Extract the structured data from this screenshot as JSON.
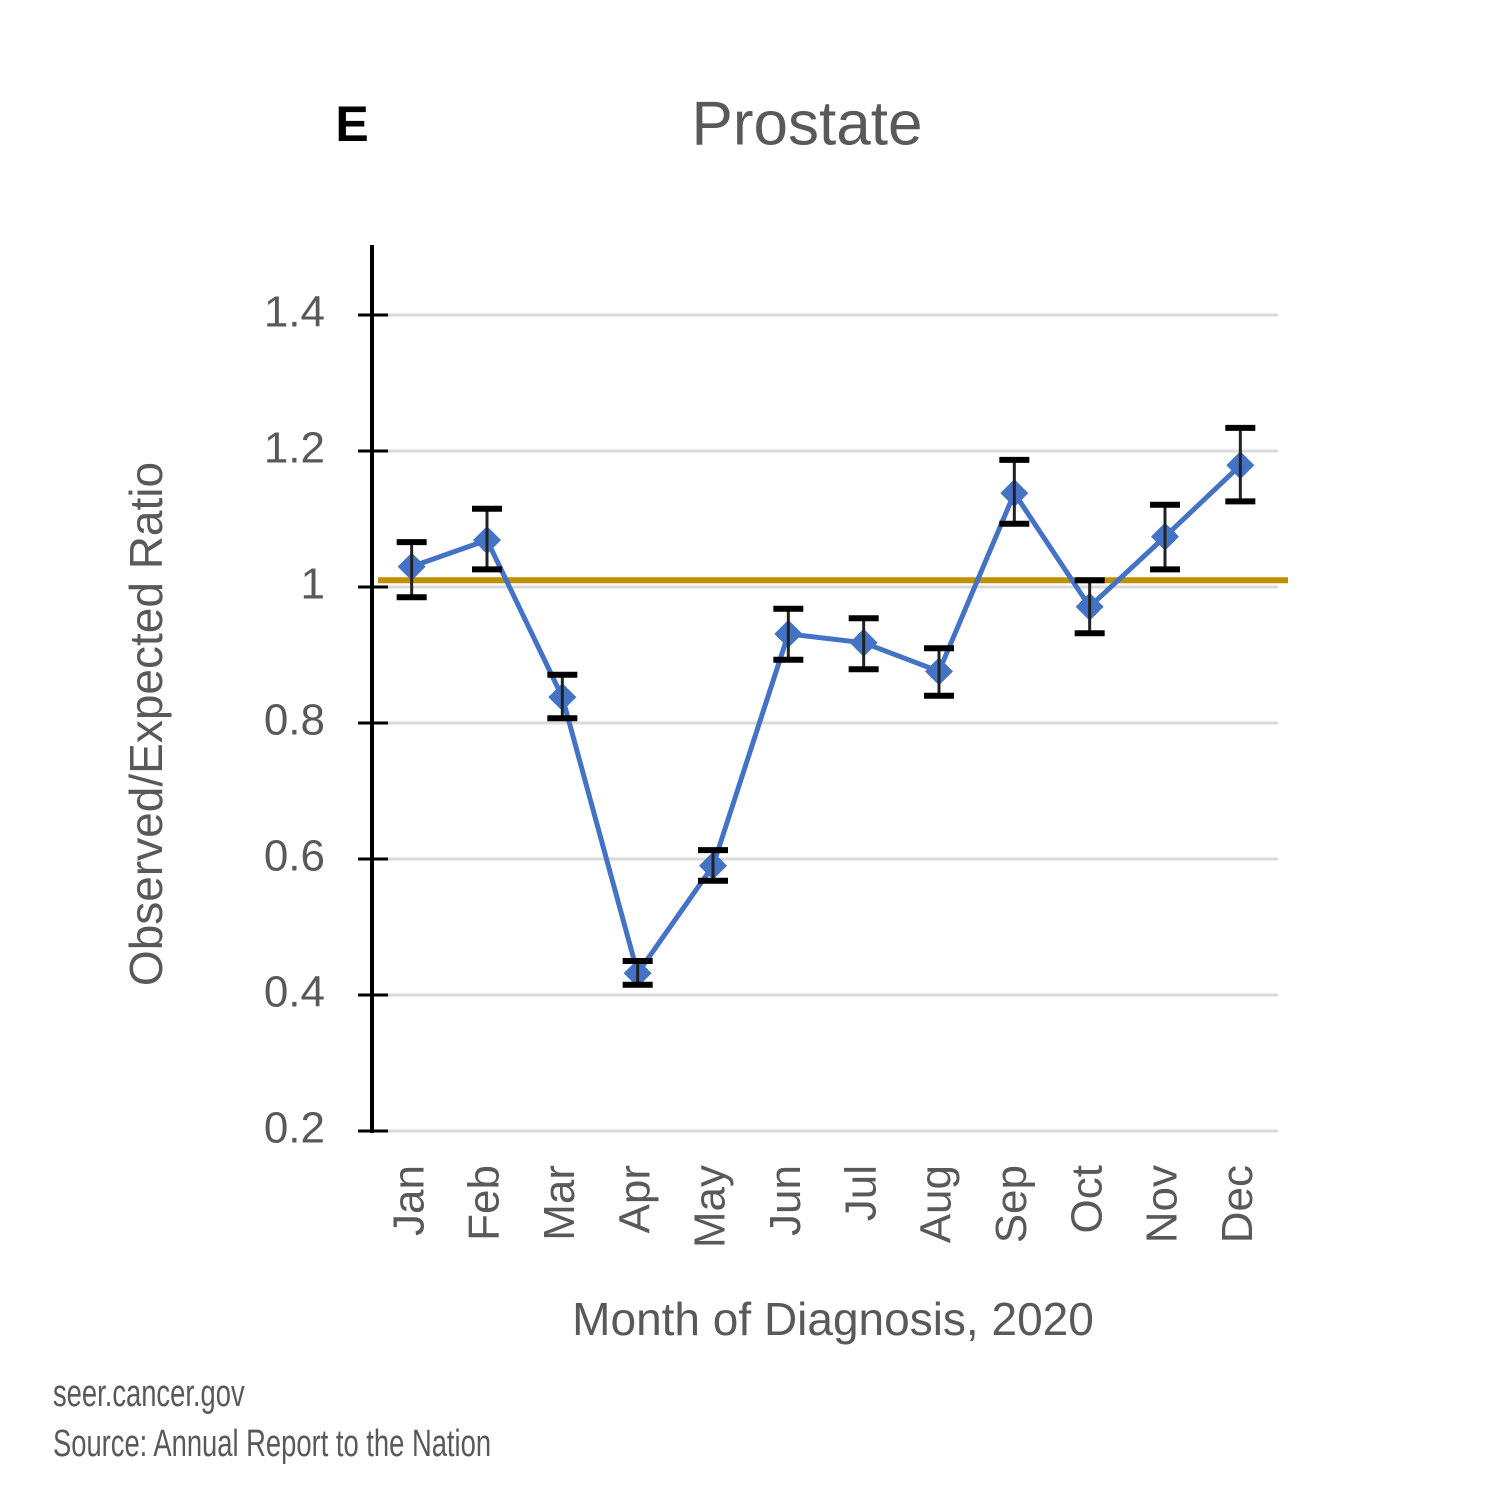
{
  "chart_data": {
    "type": "line",
    "panel_label": "E",
    "title": "Prostate",
    "x_label": "Month of Diagnosis, 2020",
    "y_label": "Observed/Expected Ratio",
    "categories": [
      "Jan",
      "Feb",
      "Mar",
      "Apr",
      "May",
      "Jun",
      "Jul",
      "Aug",
      "Sep",
      "Oct",
      "Nov",
      "Dec"
    ],
    "series": [
      {
        "color": "#4472c4",
        "values": [
          1.03,
          1.069,
          0.838,
          0.432,
          0.59,
          0.931,
          0.918,
          0.876,
          1.138,
          0.971,
          1.074,
          1.179
        ],
        "lower": [
          0.985,
          1.026,
          0.807,
          0.415,
          0.568,
          0.893,
          0.879,
          0.84,
          1.093,
          0.932,
          1.026,
          1.126
        ],
        "upper": [
          1.066,
          1.115,
          0.871,
          0.45,
          0.613,
          0.968,
          0.954,
          0.91,
          1.187,
          1.01,
          1.121,
          1.234
        ]
      }
    ],
    "reference_line": 1.01,
    "reference_color": "#bf9000",
    "ylim": [
      0.2,
      1.5
    ],
    "yticks": [
      0.2,
      0.4,
      0.6,
      0.8,
      1,
      1.2,
      1.4
    ],
    "grid": true,
    "source": [
      "seer.cancer.gov",
      "Source: Annual Report to the Nation"
    ]
  }
}
